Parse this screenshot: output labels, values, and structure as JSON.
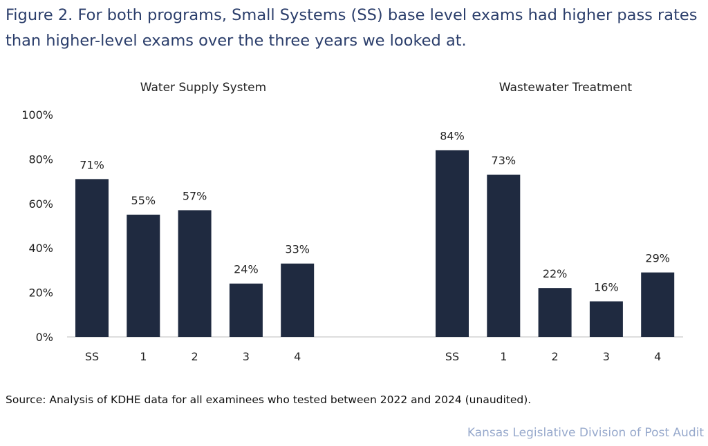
{
  "title": "Figure 2. For both programs, Small Systems (SS) base level exams had higher pass rates than higher-level exams over the three years we looked at.",
  "source": "Source: Analysis of KDHE data for all examinees who tested between 2022 and 2024 (unaudited).",
  "credit": "Kansas Legislative Division of Post Audit",
  "colors": {
    "bar": "#1f2a40",
    "title": "#2b3e6b",
    "credit": "#97a9cc"
  },
  "chart_data": {
    "type": "bar",
    "title": "",
    "xlabel": "",
    "ylabel": "",
    "ylim": [
      0,
      100
    ],
    "yticks": [
      "0%",
      "20%",
      "40%",
      "60%",
      "80%",
      "100%"
    ],
    "yticks_values": [
      0,
      20,
      40,
      60,
      80,
      100
    ],
    "grid": false,
    "groups": [
      {
        "name": "Water Supply System",
        "categories": [
          "SS",
          "1",
          "2",
          "3",
          "4"
        ],
        "values": [
          71,
          55,
          57,
          24,
          33
        ],
        "labels": [
          "71%",
          "55%",
          "57%",
          "24%",
          "33%"
        ]
      },
      {
        "name": "Wastewater Treatment",
        "categories": [
          "SS",
          "1",
          "2",
          "3",
          "4"
        ],
        "values": [
          84,
          73,
          22,
          16,
          29
        ],
        "labels": [
          "84%",
          "73%",
          "22%",
          "16%",
          "29%"
        ]
      }
    ]
  }
}
